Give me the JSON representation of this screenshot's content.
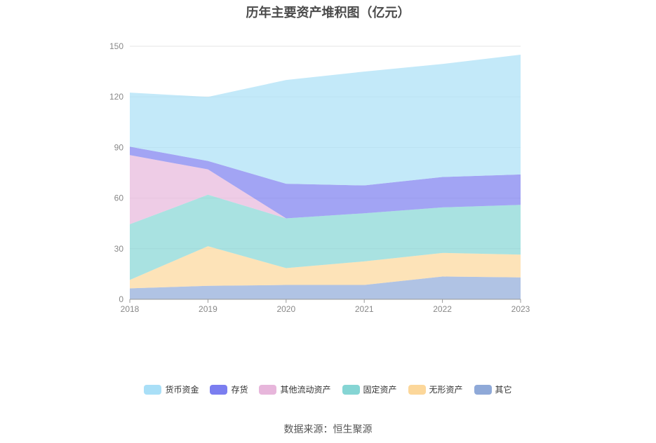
{
  "chart_data": {
    "type": "area",
    "stacked": true,
    "title": "历年主要资产堆积图（亿元）",
    "categories": [
      "2018",
      "2019",
      "2020",
      "2021",
      "2022",
      "2023"
    ],
    "ylim": [
      0,
      150
    ],
    "yticks": [
      0,
      30,
      60,
      90,
      120,
      150
    ],
    "grid": "horizontal",
    "legend_position": "bottom",
    "series": [
      {
        "name": "其它",
        "color": "#8fa9d8",
        "values": [
          6.5,
          8,
          8.5,
          8.5,
          13.5,
          13
        ]
      },
      {
        "name": "无形资产",
        "color": "#fcd79a",
        "values": [
          5,
          23.5,
          10,
          14,
          14,
          13.5
        ]
      },
      {
        "name": "固定资产",
        "color": "#85d5d4",
        "values": [
          33,
          30.5,
          29.5,
          28.5,
          27,
          29.5
        ]
      },
      {
        "name": "其他流动资产",
        "color": "#e7b6db",
        "values": [
          41,
          15,
          0,
          0,
          0,
          0
        ]
      },
      {
        "name": "存货",
        "color": "#7b7ef0",
        "values": [
          5,
          5,
          20.5,
          16.5,
          18,
          18
        ]
      },
      {
        "name": "货币资金",
        "color": "#a9dff7",
        "values": [
          32,
          38,
          61.5,
          67.5,
          67,
          71
        ]
      }
    ],
    "legend_order": [
      "货币资金",
      "存货",
      "其他流动资产",
      "固定资产",
      "无形资产",
      "其它"
    ]
  },
  "source": "数据来源：恒生聚源"
}
